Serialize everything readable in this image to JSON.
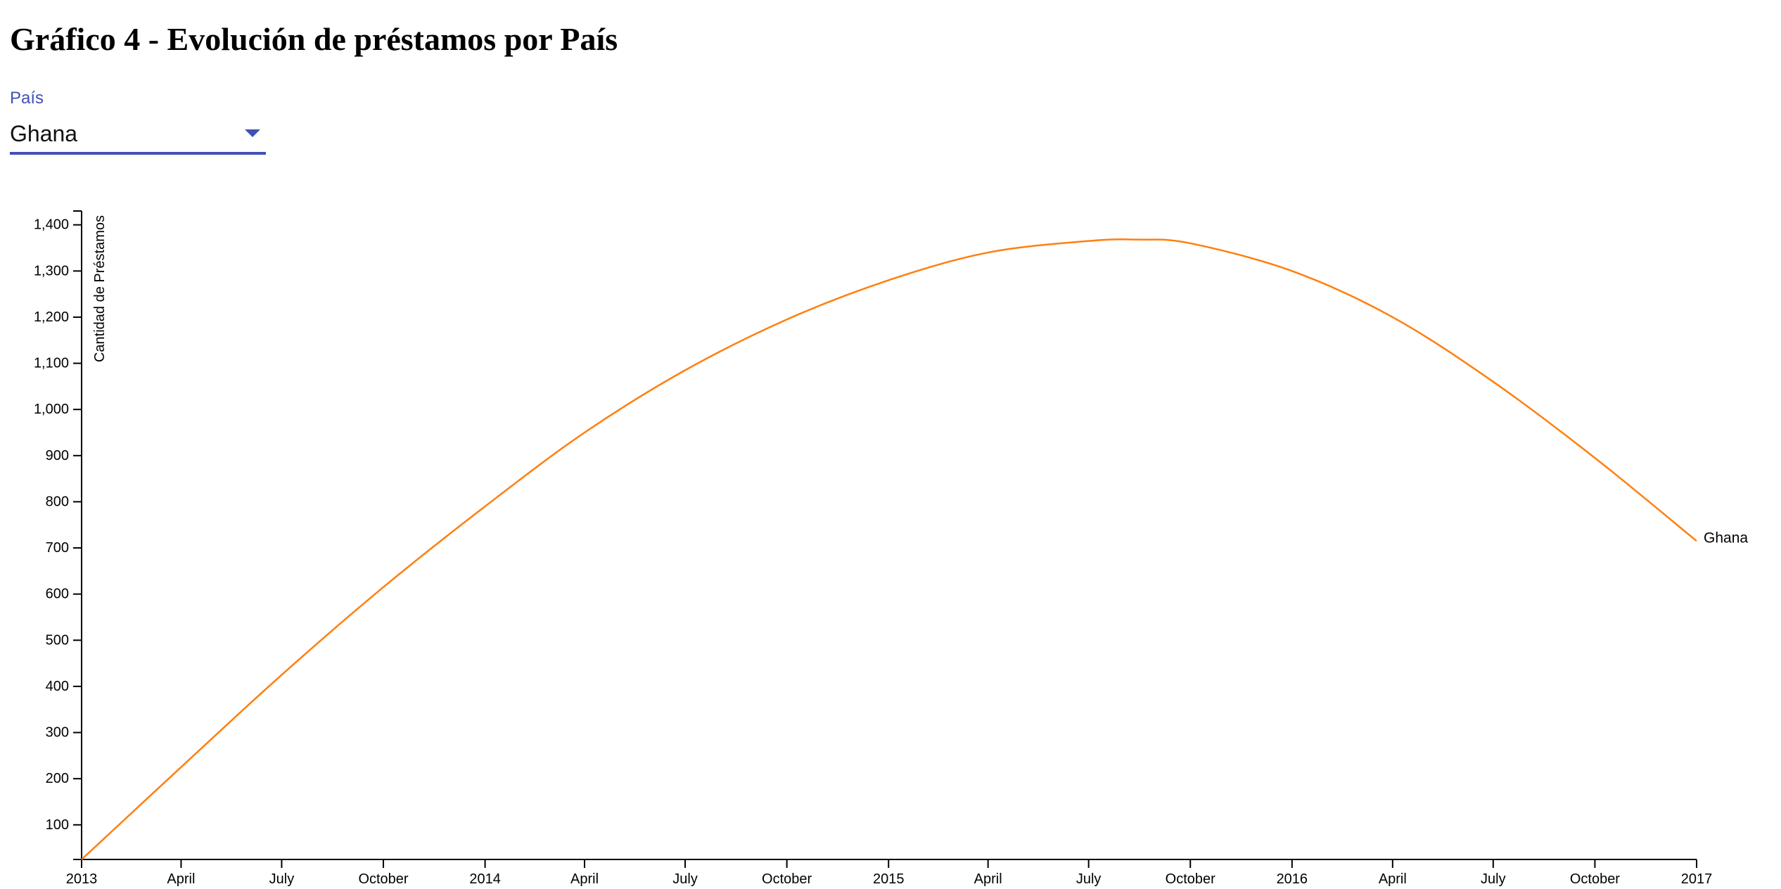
{
  "page": {
    "title": "Gráfico 4 - Evolución de préstamos por País"
  },
  "filter": {
    "label": "País",
    "selected": "Ghana"
  },
  "colors": {
    "line": "#ff7f0e",
    "accent": "#3f51b5",
    "axis": "#000000"
  },
  "chart_data": {
    "type": "line",
    "title": "",
    "xlabel": "",
    "ylabel": "Cantidad de Préstamos",
    "ylim": [
      25,
      1430
    ],
    "xlim": [
      "2013-01-01",
      "2017-01-01"
    ],
    "y_ticks": [
      100,
      200,
      300,
      400,
      500,
      600,
      700,
      800,
      900,
      1000,
      1100,
      1200,
      1300,
      1400
    ],
    "y_tick_labels": [
      "100",
      "200",
      "300",
      "400",
      "500",
      "600",
      "700",
      "800",
      "900",
      "1,000",
      "1,100",
      "1,200",
      "1,300",
      "1,400"
    ],
    "x_ticks": [
      "2013-01-01",
      "2013-04-01",
      "2013-07-01",
      "2013-10-01",
      "2014-01-01",
      "2014-04-01",
      "2014-07-01",
      "2014-10-01",
      "2015-01-01",
      "2015-04-01",
      "2015-07-01",
      "2015-10-01",
      "2016-01-01",
      "2016-04-01",
      "2016-07-01",
      "2016-10-01",
      "2017-01-01"
    ],
    "x_tick_labels": [
      "2013",
      "April",
      "July",
      "October",
      "2014",
      "April",
      "July",
      "October",
      "2015",
      "April",
      "July",
      "October",
      "2016",
      "April",
      "July",
      "October",
      "2017"
    ],
    "series": [
      {
        "name": "Ghana",
        "x": [
          "2013-01-01",
          "2013-04-01",
          "2013-07-01",
          "2013-10-01",
          "2014-01-01",
          "2014-04-01",
          "2014-07-01",
          "2014-10-01",
          "2015-01-01",
          "2015-04-01",
          "2015-07-01",
          "2015-08-15",
          "2015-10-01",
          "2016-01-01",
          "2016-04-01",
          "2016-07-01",
          "2016-10-01",
          "2017-01-01"
        ],
        "values": [
          25,
          225,
          425,
          615,
          790,
          950,
          1085,
          1195,
          1280,
          1340,
          1365,
          1368,
          1360,
          1300,
          1200,
          1060,
          895,
          715
        ]
      }
    ],
    "series_labels": [
      "Ghana"
    ]
  }
}
